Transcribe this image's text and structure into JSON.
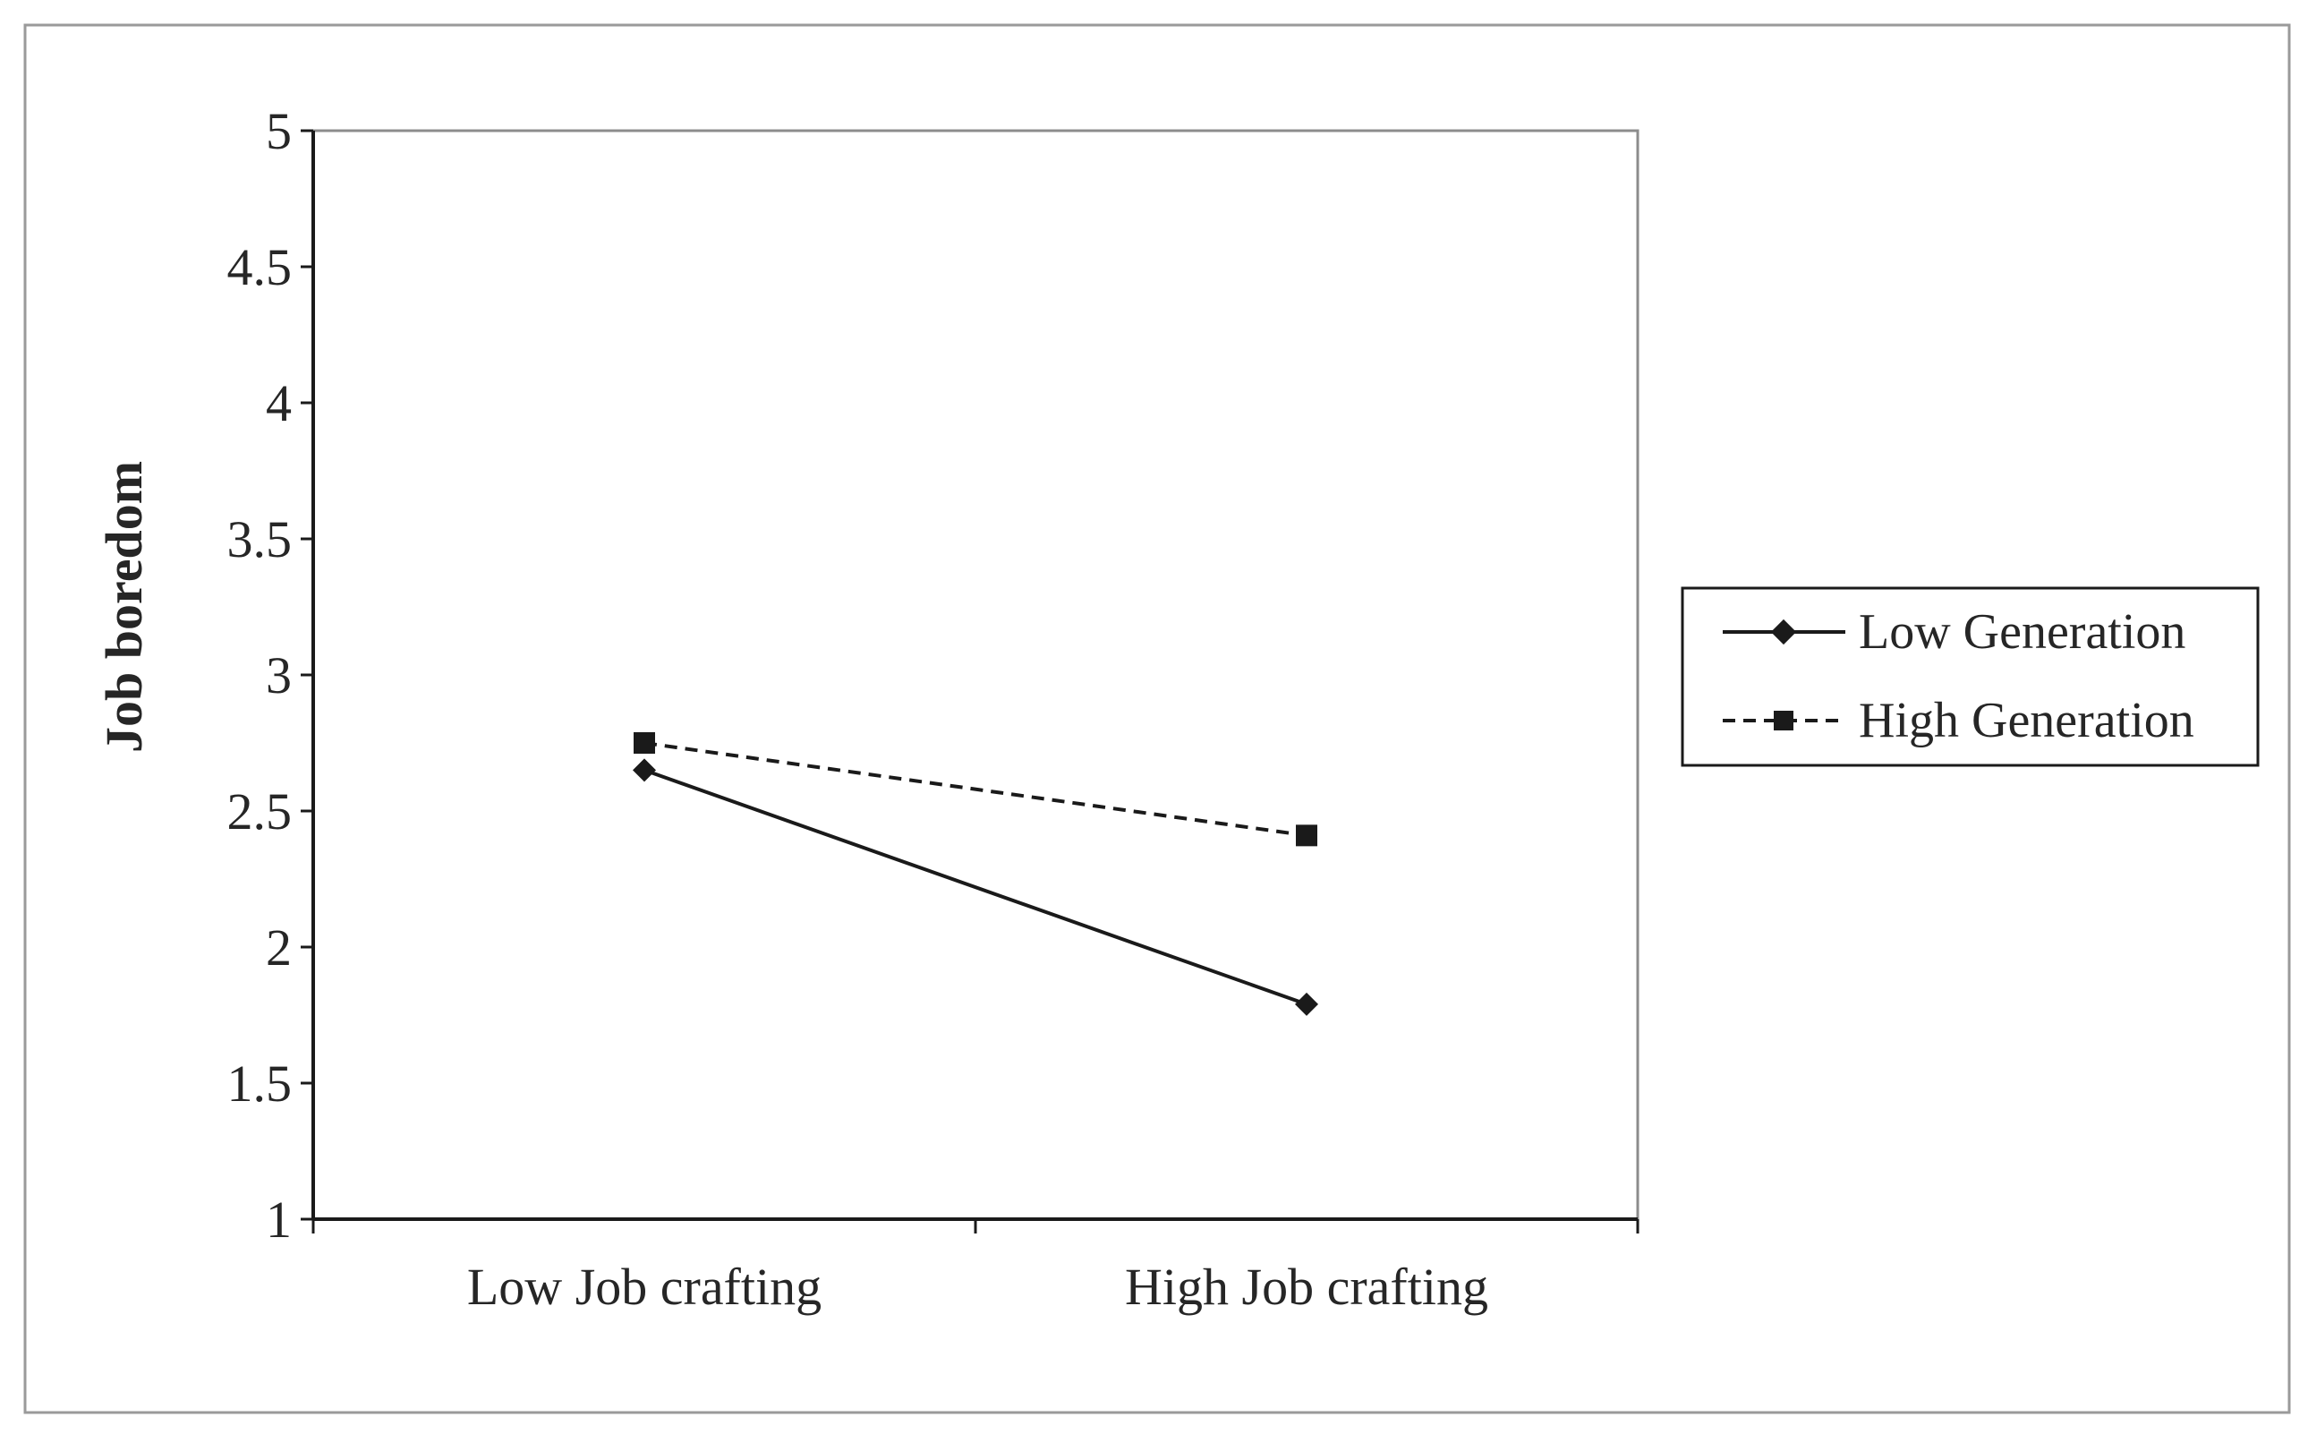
{
  "chart_data": {
    "type": "line",
    "title": "",
    "xlabel": "",
    "ylabel": "Job boredom",
    "categories": [
      "Low Job crafting",
      "High Job crafting"
    ],
    "ylim": [
      1,
      5
    ],
    "yticks": [
      "1",
      "1.5",
      "2",
      "2.5",
      "3",
      "3.5",
      "4",
      "4.5",
      "5"
    ],
    "grid": false,
    "legend_position": "right",
    "series": [
      {
        "name": "Low Generation",
        "values": [
          2.65,
          1.79
        ],
        "line_style": "solid",
        "marker": "diamond",
        "color": "#1a1a1a"
      },
      {
        "name": "High Generation",
        "values": [
          2.75,
          2.41
        ],
        "line_style": "dashed",
        "marker": "square",
        "color": "#1a1a1a"
      }
    ]
  }
}
